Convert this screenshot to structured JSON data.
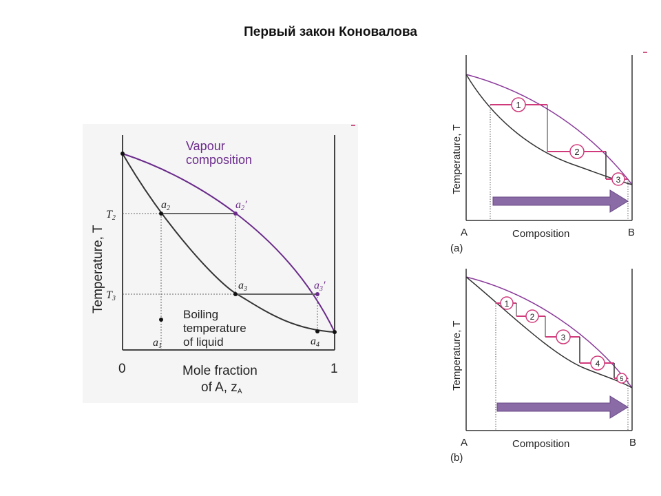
{
  "page": {
    "title": "Первый закон Коновалова"
  },
  "left_diagram": {
    "vapour_label_1": "Vapour",
    "vapour_label_2": "composition",
    "liquid_label_1": "Boiling",
    "liquid_label_2": "temperature",
    "liquid_label_3": "of liquid",
    "ylabel": "Temperature, T",
    "xlabel_1": "Mole fraction",
    "xlabel_2": "of A, z",
    "xlabel_sub": "A",
    "tick_0": "0",
    "tick_1": "1",
    "t2": "T",
    "t2_sub": "2",
    "t3": "T",
    "t3_sub": "3",
    "point_a1": "a",
    "point_a1_sub": "1",
    "point_a2": "a",
    "point_a2_sub": "2",
    "point_a2p": "a",
    "point_a2p_sub": "2",
    "point_a2p_prime": "′",
    "point_a3": "a",
    "point_a3_sub": "3",
    "point_a3p": "a",
    "point_a3p_sub": "3",
    "point_a3p_prime": "′",
    "point_a4": "a",
    "point_a4_sub": "4",
    "colors": {
      "vapour_curve": "#6a2a8a",
      "liquid_curve": "#333333",
      "dash": "#555555"
    }
  },
  "panel_a": {
    "ylabel": "Temperature, T",
    "x_left": "A",
    "x_right": "B",
    "xlabel": "Composition",
    "caption": "(a)",
    "steps": [
      "1",
      "2",
      "3"
    ],
    "colors": {
      "step": "#d03a7a",
      "vapour": "#8a3a9a",
      "arrow": "#8a6ba6"
    }
  },
  "panel_b": {
    "ylabel": "Temperature, T",
    "x_left": "A",
    "x_right": "B",
    "xlabel": "Composition",
    "caption": "(b)",
    "steps": [
      "1",
      "2",
      "3",
      "4",
      "5"
    ],
    "colors": {
      "step": "#d03a7a",
      "vapour": "#8a3a9a",
      "arrow": "#8a6ba6"
    }
  }
}
